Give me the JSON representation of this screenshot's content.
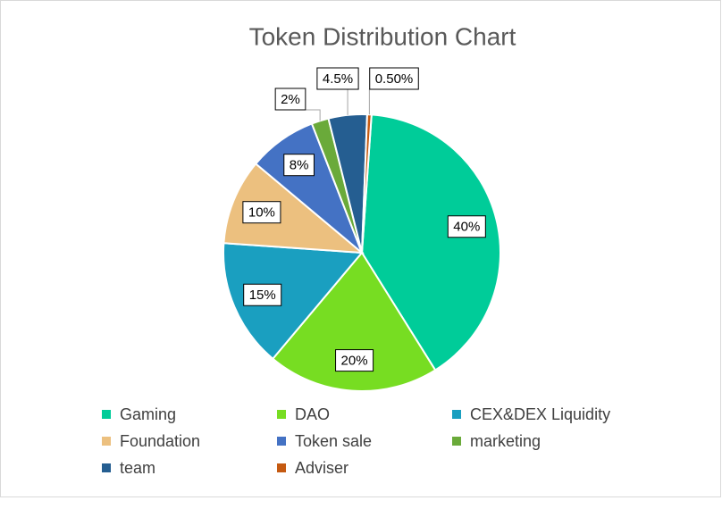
{
  "chart_data": {
    "type": "pie",
    "title": "Token Distribution Chart",
    "categories": [
      "Gaming",
      "DAO",
      "CEX&DEX Liquidity",
      "Foundation",
      "Token sale",
      "marketing",
      "team",
      "Adviser"
    ],
    "values": [
      40,
      20,
      15,
      10,
      8,
      2,
      4.5,
      0.5
    ],
    "value_labels": [
      "40%",
      "20%",
      "15%",
      "10%",
      "8%",
      "2%",
      "4.5%",
      "0.50%"
    ],
    "colors": [
      "#00cc99",
      "#77dd22",
      "#1a9fc0",
      "#ecc07f",
      "#4472c4",
      "#6aaa3a",
      "#255e91",
      "#c55a11"
    ],
    "legend": "bottom"
  }
}
